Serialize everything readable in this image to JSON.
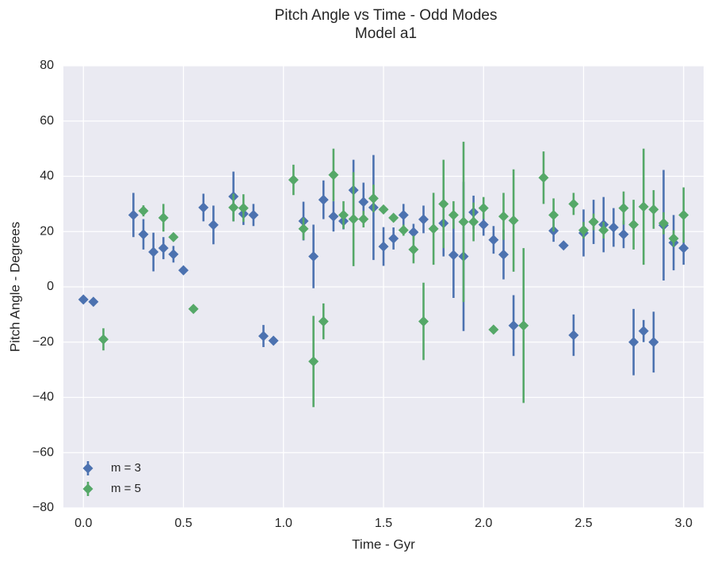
{
  "chart_data": {
    "type": "errorbar",
    "title": "Pitch Angle vs Time - Odd Modes",
    "subtitle": "Model a1",
    "x_label": "Time - Gyr",
    "y_label": "Pitch Angle - Degrees",
    "xlim": [
      -0.1,
      3.1
    ],
    "ylim": [
      -80,
      80
    ],
    "xticks": [
      {
        "value": 0,
        "label": "0.0"
      },
      {
        "value": 0.5,
        "label": "0.5"
      },
      {
        "value": 1,
        "label": "1.0"
      },
      {
        "value": 1.5,
        "label": "1.5"
      },
      {
        "value": 2,
        "label": "2.0"
      },
      {
        "value": 2.5,
        "label": "2.5"
      },
      {
        "value": 3,
        "label": "3.0"
      }
    ],
    "yticks": [
      {
        "value": -80,
        "label": "−80"
      },
      {
        "value": -60,
        "label": "−60"
      },
      {
        "value": -40,
        "label": "−40"
      },
      {
        "value": -20,
        "label": "−20"
      },
      0,
      20,
      40,
      60,
      80
    ],
    "grid": true,
    "legend": "lower left",
    "series": [
      {
        "name": "m = 3",
        "color": "#4c72b0",
        "x": [
          0.0,
          0.05,
          0.25,
          0.3,
          0.35,
          0.4,
          0.45,
          0.5,
          0.6,
          0.65,
          0.75,
          0.8,
          0.85,
          0.9,
          0.95,
          1.1,
          1.15,
          1.2,
          1.25,
          1.3,
          1.35,
          1.4,
          1.45,
          1.5,
          1.55,
          1.6,
          1.65,
          1.7,
          1.8,
          1.85,
          1.9,
          1.95,
          2.0,
          2.05,
          2.1,
          2.15,
          2.35,
          2.4,
          2.45,
          2.5,
          2.55,
          2.6,
          2.65,
          2.7,
          2.75,
          2.8,
          2.85,
          2.9,
          2.95,
          3.0
        ],
        "values": [
          -4.6,
          -5.4,
          26,
          19,
          12.6,
          14,
          11.8,
          6,
          28.7,
          22.4,
          32.7,
          26.4,
          26,
          -17.8,
          -19.5,
          23.8,
          11,
          31.5,
          25.5,
          23.8,
          35,
          30.7,
          28.7,
          14.6,
          17.5,
          26,
          19.8,
          24.4,
          23,
          11.5,
          11,
          27,
          22.5,
          17,
          11.7,
          -14,
          20.3,
          15,
          -17.5,
          19.5,
          23.5,
          22.5,
          21.5,
          19,
          -20,
          -16,
          -20,
          22.3,
          16,
          14
        ],
        "errors": [
          0,
          0,
          8,
          5.5,
          7,
          4,
          3,
          0,
          5,
          7,
          9,
          4,
          4,
          4,
          0,
          7,
          11.5,
          7,
          5.5,
          3,
          11,
          7,
          19,
          7,
          4,
          4,
          3,
          5,
          12,
          15.5,
          27,
          6,
          4,
          5,
          9,
          11,
          4,
          0,
          7.5,
          8.5,
          8,
          10,
          7,
          5,
          12,
          4,
          11,
          20,
          10,
          6
        ]
      },
      {
        "name": "m = 5",
        "color": "#55a868",
        "x": [
          0.1,
          0.3,
          0.4,
          0.45,
          0.55,
          0.75,
          0.8,
          1.05,
          1.1,
          1.15,
          1.2,
          1.25,
          1.3,
          1.35,
          1.4,
          1.45,
          1.5,
          1.55,
          1.6,
          1.65,
          1.7,
          1.75,
          1.8,
          1.85,
          1.9,
          1.95,
          2.0,
          2.05,
          2.1,
          2.15,
          2.2,
          2.3,
          2.35,
          2.45,
          2.5,
          2.55,
          2.6,
          2.7,
          2.75,
          2.8,
          2.85,
          2.9,
          2.95,
          3.0
        ],
        "values": [
          -19,
          27.5,
          25,
          18,
          -8,
          28.7,
          28.5,
          38.7,
          21,
          -27,
          -12.5,
          40.5,
          26,
          24.5,
          24.5,
          32,
          28,
          25,
          20.5,
          13.5,
          -12.5,
          21,
          30,
          26,
          23.5,
          23.5,
          28.5,
          -15.5,
          25.5,
          24,
          -14,
          39.5,
          26,
          30,
          20.5,
          23.5,
          20.5,
          28.5,
          22.5,
          29,
          28,
          23,
          17.5,
          26
        ],
        "errors": [
          4,
          2,
          5,
          0,
          0,
          5,
          5,
          5.5,
          4,
          16.5,
          6.5,
          9.5,
          5,
          17,
          3,
          5,
          0,
          0,
          2,
          5,
          14,
          13,
          16,
          5,
          29,
          7,
          4,
          0,
          8.5,
          18.5,
          28,
          9.5,
          6,
          4,
          3,
          3,
          3,
          6,
          9,
          21,
          7,
          4,
          3,
          10
        ]
      }
    ]
  }
}
